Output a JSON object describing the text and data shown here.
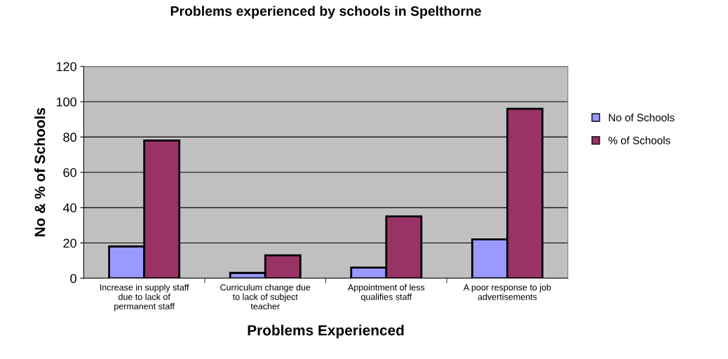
{
  "chart_data": {
    "type": "bar",
    "title": "Problems experienced by schools in Spelthorne",
    "xlabel": "Problems Experienced",
    "ylabel": "No & % of Schools",
    "categories": [
      "Increase in supply staff\ndue to lack of\npermanent staff",
      "Curriculum change due\nto lack of subject\nteacher",
      "Appointment of less\nqualifies staff",
      "A poor response to job\nadvertisements"
    ],
    "series": [
      {
        "name": "No of Schools",
        "color": "#9999ff",
        "values": [
          18,
          3,
          6,
          22
        ]
      },
      {
        "name": "% of Schools",
        "color": "#993366",
        "values": [
          78,
          13,
          35,
          96
        ]
      }
    ],
    "ylim": [
      0,
      120
    ],
    "yticks": [
      0,
      20,
      40,
      60,
      80,
      100,
      120
    ],
    "grid": "y",
    "legend": "right"
  }
}
